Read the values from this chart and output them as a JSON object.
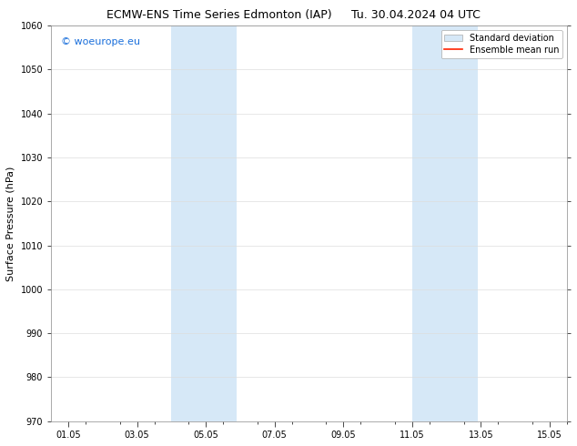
{
  "title_left": "ECMW-ENS Time Series Edmonton (IAP)",
  "title_right": "Tu. 30.04.2024 04 UTC",
  "ylabel": "Surface Pressure (hPa)",
  "ylim": [
    970,
    1060
  ],
  "yticks": [
    970,
    980,
    990,
    1000,
    1010,
    1020,
    1030,
    1040,
    1050,
    1060
  ],
  "xtick_labels": [
    "01.05",
    "03.05",
    "05.05",
    "07.05",
    "09.05",
    "11.05",
    "13.05",
    "15.05"
  ],
  "xtick_positions": [
    1,
    3,
    5,
    7,
    9,
    11,
    13,
    15
  ],
  "x_min": 0.5,
  "x_max": 15.5,
  "shaded_bands": [
    {
      "x_start": 4.0,
      "x_end": 5.9
    },
    {
      "x_start": 11.0,
      "x_end": 12.9
    }
  ],
  "shade_color": "#d6e8f7",
  "watermark_text": "© woeurope.eu",
  "watermark_color": "#1a6fdb",
  "legend_std_label": "Standard deviation",
  "legend_mean_label": "Ensemble mean run",
  "legend_std_facecolor": "#d6e8f7",
  "legend_std_edgecolor": "#aaaaaa",
  "legend_mean_color": "#ff2200",
  "background_color": "#ffffff",
  "grid_color": "#dddddd",
  "title_fontsize": 9,
  "axis_label_fontsize": 8,
  "tick_fontsize": 7,
  "watermark_fontsize": 8,
  "legend_fontsize": 7,
  "figwidth": 6.34,
  "figheight": 4.9,
  "dpi": 100
}
